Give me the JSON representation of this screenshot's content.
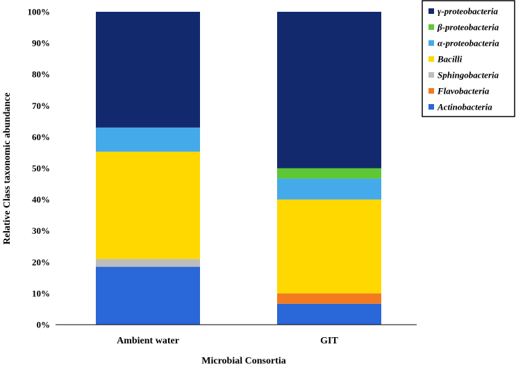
{
  "chart_data": {
    "type": "bar",
    "stacked": true,
    "title": "",
    "xlabel": "Microbial Consortia",
    "ylabel": "Relative Class taxonomic abundance",
    "ylim": [
      0,
      100
    ],
    "y_tick_values": [
      0,
      10,
      20,
      30,
      40,
      50,
      60,
      70,
      80,
      90,
      100
    ],
    "y_tick_labels": [
      "0%",
      "10%",
      "20%",
      "30%",
      "40%",
      "50%",
      "60%",
      "70%",
      "80%",
      "90%",
      "100%"
    ],
    "categories": [
      "Ambient water",
      "GIT"
    ],
    "legend_position": "top-right",
    "series": [
      {
        "name": "Actinobacteria",
        "color": "#2a67d8",
        "values": [
          18.5,
          6.7
        ]
      },
      {
        "name": "Flavobacteria",
        "color": "#f37a1f",
        "values": [
          0,
          3.3
        ]
      },
      {
        "name": "Sphingobacteria",
        "color": "#bdbdbd",
        "values": [
          2.5,
          0
        ]
      },
      {
        "name": "Bacilli",
        "color": "#ffd800",
        "values": [
          34.3,
          30.0
        ]
      },
      {
        "name": "α-proteobacteria",
        "color": "#44aaea",
        "values": [
          7.7,
          6.7
        ]
      },
      {
        "name": "β-proteobacteria",
        "color": "#5ec736",
        "values": [
          0,
          3.3
        ]
      },
      {
        "name": "γ-proteobacteria",
        "color": "#13296e",
        "values": [
          37.0,
          50.0
        ]
      }
    ]
  }
}
